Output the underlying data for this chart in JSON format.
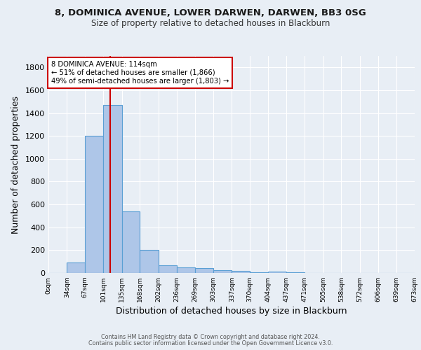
{
  "title": "8, DOMINICA AVENUE, LOWER DARWEN, DARWEN, BB3 0SG",
  "subtitle": "Size of property relative to detached houses in Blackburn",
  "xlabel": "Distribution of detached houses by size in Blackburn",
  "ylabel": "Number of detached properties",
  "bin_labels": [
    "0sqm",
    "34sqm",
    "67sqm",
    "101sqm",
    "135sqm",
    "168sqm",
    "202sqm",
    "236sqm",
    "269sqm",
    "303sqm",
    "337sqm",
    "370sqm",
    "404sqm",
    "437sqm",
    "471sqm",
    "505sqm",
    "538sqm",
    "572sqm",
    "606sqm",
    "639sqm",
    "673sqm"
  ],
  "bar_values": [
    0,
    90,
    1200,
    1470,
    540,
    205,
    65,
    50,
    40,
    25,
    20,
    5,
    13,
    5,
    0,
    0,
    0,
    0,
    0,
    0
  ],
  "bar_color": "#aec6e8",
  "bar_edge_color": "#5a9fd4",
  "vline_x": 114,
  "bin_edges": [
    0,
    34,
    67,
    101,
    135,
    168,
    202,
    236,
    269,
    303,
    337,
    370,
    404,
    437,
    471,
    505,
    538,
    572,
    606,
    639,
    673
  ],
  "annotation_text": "8 DOMINICA AVENUE: 114sqm\n← 51% of detached houses are smaller (1,866)\n49% of semi-detached houses are larger (1,803) →",
  "annotation_box_color": "#ffffff",
  "annotation_border_color": "#cc0000",
  "ylim": [
    0,
    1900
  ],
  "yticks": [
    0,
    200,
    400,
    600,
    800,
    1000,
    1200,
    1400,
    1600,
    1800
  ],
  "background_color": "#e8eef5",
  "grid_color": "#ffffff",
  "footer_line1": "Contains HM Land Registry data © Crown copyright and database right 2024.",
  "footer_line2": "Contains public sector information licensed under the Open Government Licence v3.0.",
  "vline_color": "#cc0000",
  "title_fontsize": 9.5,
  "subtitle_fontsize": 8.5
}
